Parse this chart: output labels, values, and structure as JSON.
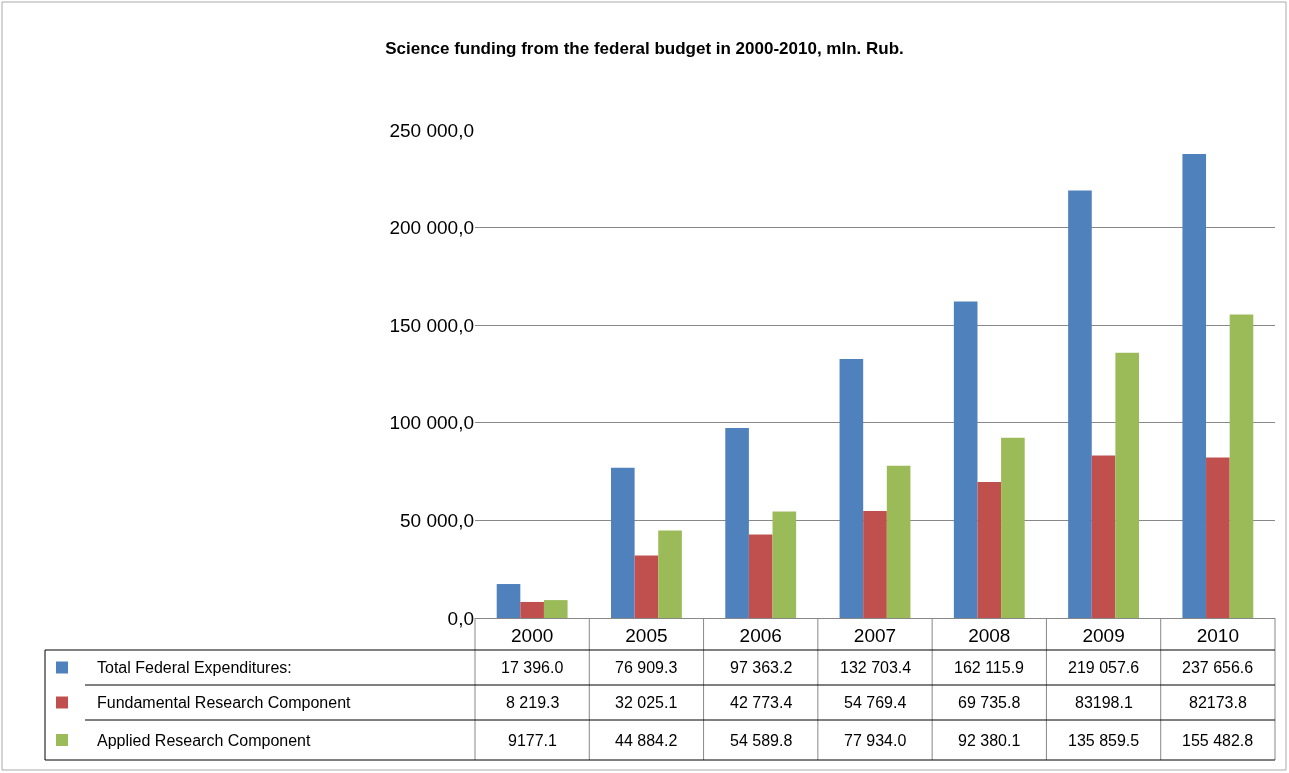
{
  "chart_data": {
    "type": "bar",
    "title": "Science funding from the federal budget in 2000-2010, mln. Rub.",
    "categories": [
      "2000",
      "2005",
      "2006",
      "2007",
      "2008",
      "2009",
      "2010"
    ],
    "series": [
      {
        "name": "Total Federal Expenditures:",
        "color": "#4f81bd",
        "values": [
          17396.0,
          76909.3,
          97363.2,
          132703.4,
          162115.9,
          219057.6,
          237656.6
        ],
        "value_labels": [
          "17 396.0",
          "76 909.3",
          "97 363.2",
          "132 703.4",
          "162 115.9",
          "219 057.6",
          "237 656.6"
        ]
      },
      {
        "name": "Fundamental Research Component",
        "color": "#c0504d",
        "values": [
          8219.3,
          32025.1,
          42773.4,
          54769.4,
          69735.8,
          83198.1,
          82173.8
        ],
        "value_labels": [
          "8 219.3",
          "32 025.1",
          "42 773.4",
          "54 769.4",
          "69 735.8",
          "83198.1",
          "82173.8"
        ]
      },
      {
        "name": "Applied Research Component",
        "color": "#9bbb59",
        "values": [
          9177.1,
          44884.2,
          54589.8,
          77934.0,
          92380.1,
          135859.5,
          155482.8
        ],
        "value_labels": [
          "9177.1",
          "44 884.2",
          "54 589.8",
          "77 934.0",
          "92 380.1",
          "135 859.5",
          "155 482.8"
        ]
      }
    ],
    "ylim": [
      0,
      250000
    ],
    "yticks": [
      {
        "value": 0,
        "label": "0,0"
      },
      {
        "value": 50000,
        "label": "50 000,0"
      },
      {
        "value": 100000,
        "label": "100 000,0"
      },
      {
        "value": 150000,
        "label": "150 000,0"
      },
      {
        "value": 200000,
        "label": "200 000,0"
      },
      {
        "value": 250000,
        "label": "250 000,0"
      }
    ],
    "grid": "y",
    "legend": "bottom"
  }
}
